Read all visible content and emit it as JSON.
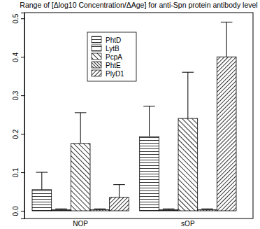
{
  "chart_data": {
    "type": "bar",
    "title": "Range of [Δlog10 Concentration/ΔAge] for anti-Spn protein antibody level",
    "categories": [
      "NOP",
      "sOP"
    ],
    "series": [
      {
        "name": "PhtD",
        "color": "#000000",
        "values": [
          0.055,
          0.193
        ],
        "errors": [
          0.045,
          0.079
        ]
      },
      {
        "name": "LytB",
        "color": "#000000",
        "values": [
          0.003,
          0.003
        ],
        "errors": [
          0.002,
          0.002
        ]
      },
      {
        "name": "PcpA",
        "color": "#000000",
        "values": [
          0.175,
          0.24
        ],
        "errors": [
          0.08,
          0.12
        ]
      },
      {
        "name": "PhtE",
        "color": "#000000",
        "values": [
          0.003,
          0.003
        ],
        "errors": [
          0.002,
          0.002
        ]
      },
      {
        "name": "PlyD1",
        "color": "#000000",
        "values": [
          0.035,
          0.4
        ],
        "errors": [
          0.033,
          0.09
        ]
      }
    ],
    "ylim": [
      -0.02,
      0.515
    ],
    "yticks": [
      {
        "value": 0,
        "label": "0.0"
      },
      {
        "value": 0.1,
        "label": "0.1"
      },
      {
        "value": 0.2,
        "label": "0.2"
      },
      {
        "value": 0.3,
        "label": "0.3"
      },
      {
        "value": 0.4,
        "label": "0.4"
      },
      {
        "value": 0.5,
        "label": "0.5"
      }
    ],
    "legend": "top",
    "grid": false
  }
}
